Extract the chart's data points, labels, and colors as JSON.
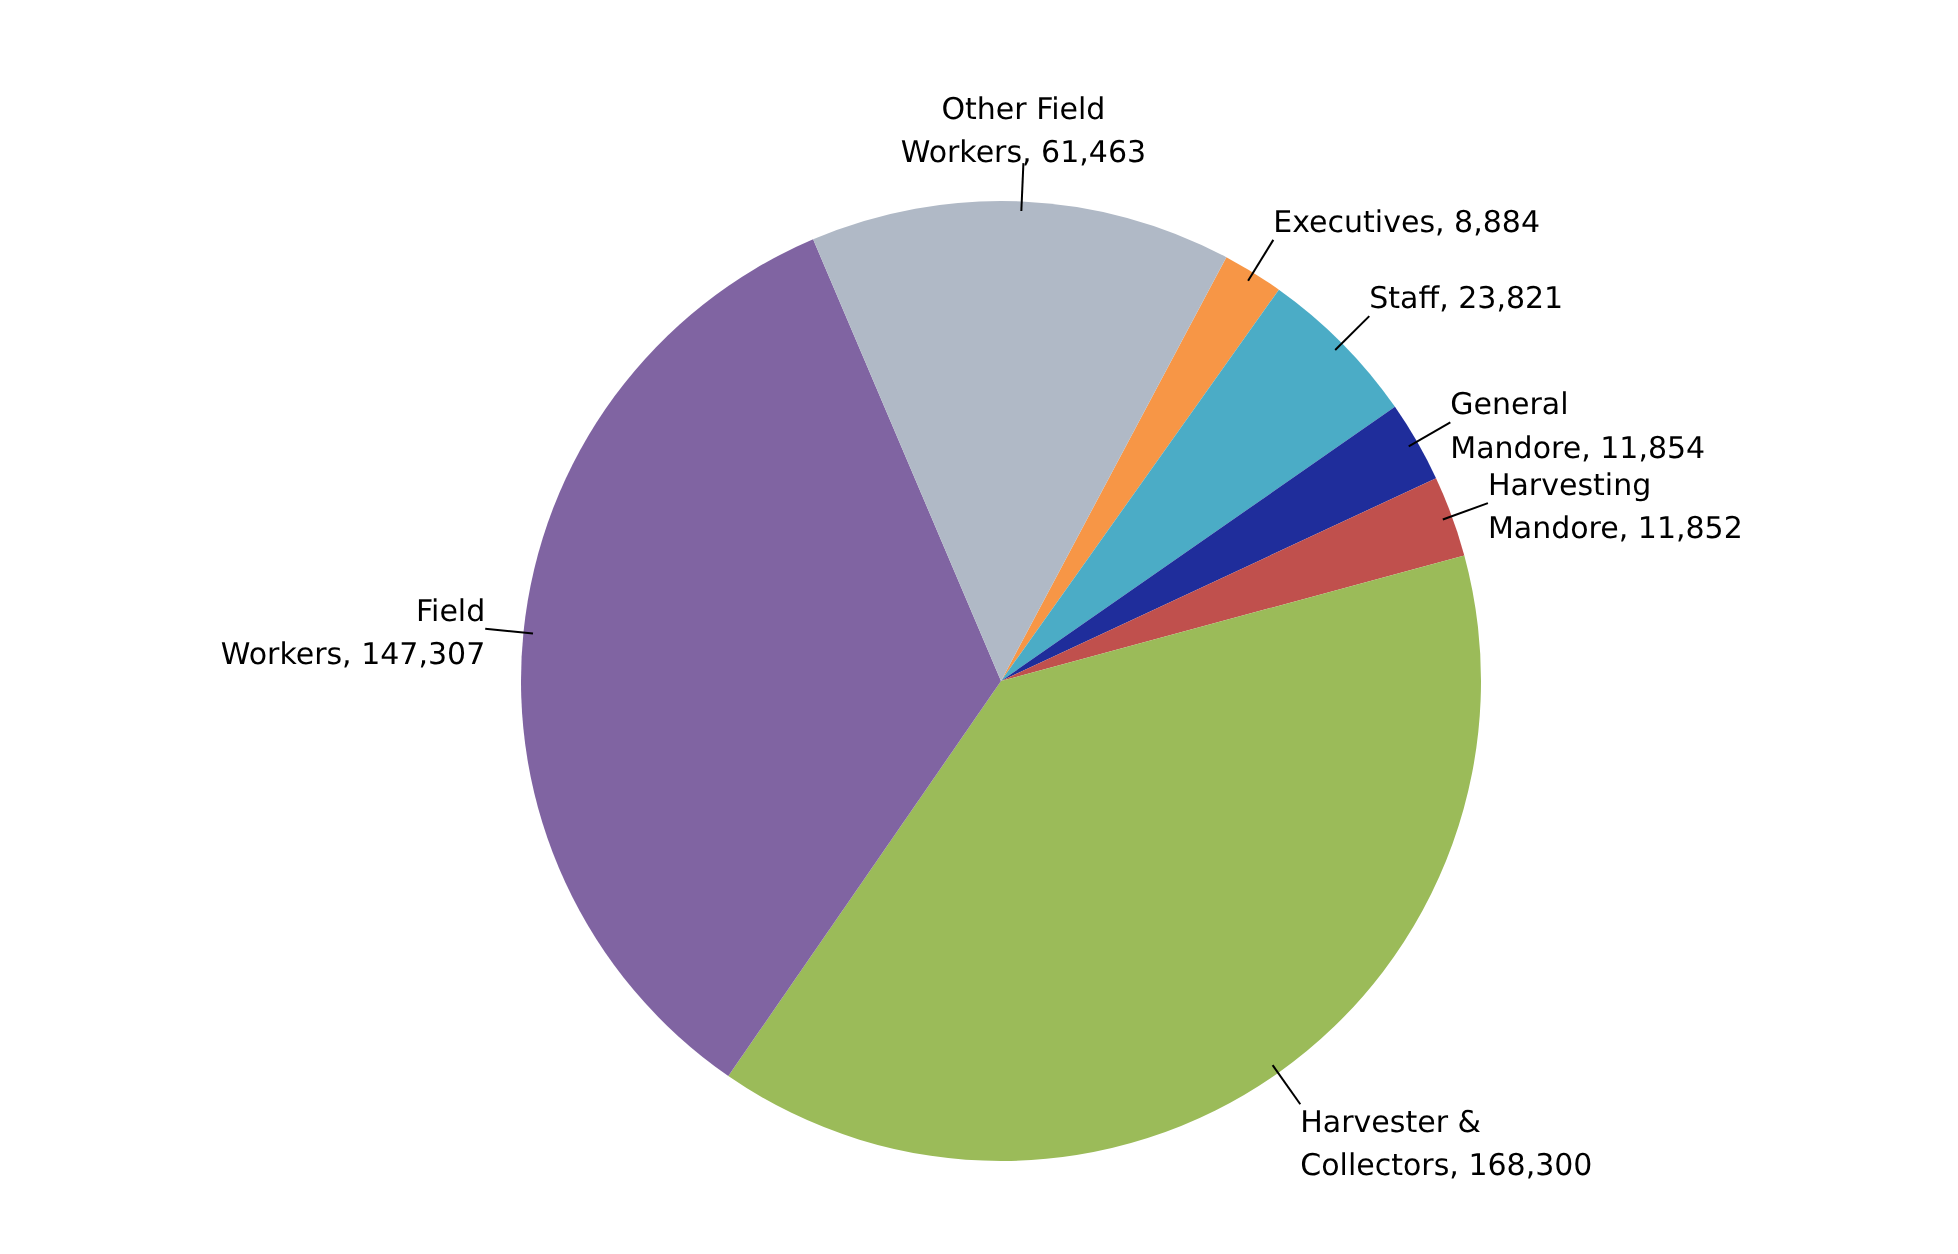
{
  "chart_data": {
    "type": "pie",
    "categories": [
      "Executives",
      "Staff",
      "General Mandore",
      "Harvesting Mandore",
      "Harvester & Collectors",
      "Field Workers",
      "Other Field Workers"
    ],
    "values": [
      8884,
      23821,
      11854,
      11852,
      168300,
      147307,
      61463
    ],
    "colors": [
      "#f79646",
      "#4bacc6",
      "#1f2d9b",
      "#c0504d",
      "#9bbb59",
      "#8064a2",
      "#b0b9c6"
    ],
    "value_labels": [
      "8,884",
      "23,821",
      "11,854",
      "11,852",
      "168,300",
      "147,307",
      "61,463"
    ]
  }
}
